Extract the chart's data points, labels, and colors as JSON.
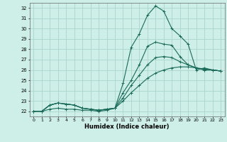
{
  "xlabel": "Humidex (Indice chaleur)",
  "bg_color": "#ceeee8",
  "grid_color": "#aad4cc",
  "line_color": "#1a6b5a",
  "xlim": [
    -0.5,
    23.5
  ],
  "ylim": [
    21.5,
    32.5
  ],
  "xticks": [
    0,
    1,
    2,
    3,
    4,
    5,
    6,
    7,
    8,
    9,
    10,
    11,
    12,
    13,
    14,
    15,
    16,
    17,
    18,
    19,
    20,
    21,
    22,
    23
  ],
  "yticks": [
    22,
    23,
    24,
    25,
    26,
    27,
    28,
    29,
    30,
    31,
    32
  ],
  "series": [
    {
      "x": [
        0,
        1,
        2,
        3,
        4,
        5,
        6,
        7,
        8,
        9,
        10,
        11,
        12,
        13,
        14,
        15,
        16,
        17,
        18,
        19,
        20,
        21,
        22,
        23
      ],
      "y": [
        22,
        22,
        22.6,
        22.8,
        22.7,
        22.6,
        22.3,
        22.2,
        22.1,
        22.2,
        22.3,
        24.7,
        28.2,
        29.5,
        31.3,
        32.2,
        31.7,
        30.0,
        29.3,
        28.5,
        26.0,
        26.2,
        26.0,
        25.9
      ]
    },
    {
      "x": [
        0,
        1,
        2,
        3,
        4,
        5,
        6,
        7,
        8,
        9,
        10,
        11,
        12,
        13,
        14,
        15,
        16,
        17,
        18,
        19,
        20,
        21,
        22,
        23
      ],
      "y": [
        22,
        22,
        22.6,
        22.8,
        22.7,
        22.6,
        22.3,
        22.2,
        22.1,
        22.2,
        22.3,
        23.8,
        25.0,
        26.5,
        28.3,
        28.7,
        28.5,
        28.4,
        27.3,
        26.5,
        26.2,
        26.0,
        26.0,
        25.9
      ]
    },
    {
      "x": [
        0,
        1,
        2,
        3,
        4,
        5,
        6,
        7,
        8,
        9,
        10,
        11,
        12,
        13,
        14,
        15,
        16,
        17,
        18,
        19,
        20,
        21,
        22,
        23
      ],
      "y": [
        22,
        22,
        22.6,
        22.8,
        22.7,
        22.6,
        22.3,
        22.2,
        22.1,
        22.2,
        22.3,
        23.3,
        24.5,
        25.5,
        26.5,
        27.2,
        27.3,
        27.2,
        26.8,
        26.5,
        26.2,
        26.0,
        26.0,
        25.9
      ]
    },
    {
      "x": [
        0,
        1,
        2,
        3,
        4,
        5,
        6,
        7,
        8,
        9,
        10,
        11,
        12,
        13,
        14,
        15,
        16,
        17,
        18,
        19,
        20,
        21,
        22,
        23
      ],
      "y": [
        22,
        22,
        22.2,
        22.3,
        22.2,
        22.2,
        22.1,
        22.1,
        22.0,
        22.1,
        22.3,
        23.0,
        23.8,
        24.5,
        25.2,
        25.7,
        26.0,
        26.2,
        26.3,
        26.3,
        26.2,
        26.1,
        26.0,
        25.9
      ]
    }
  ]
}
